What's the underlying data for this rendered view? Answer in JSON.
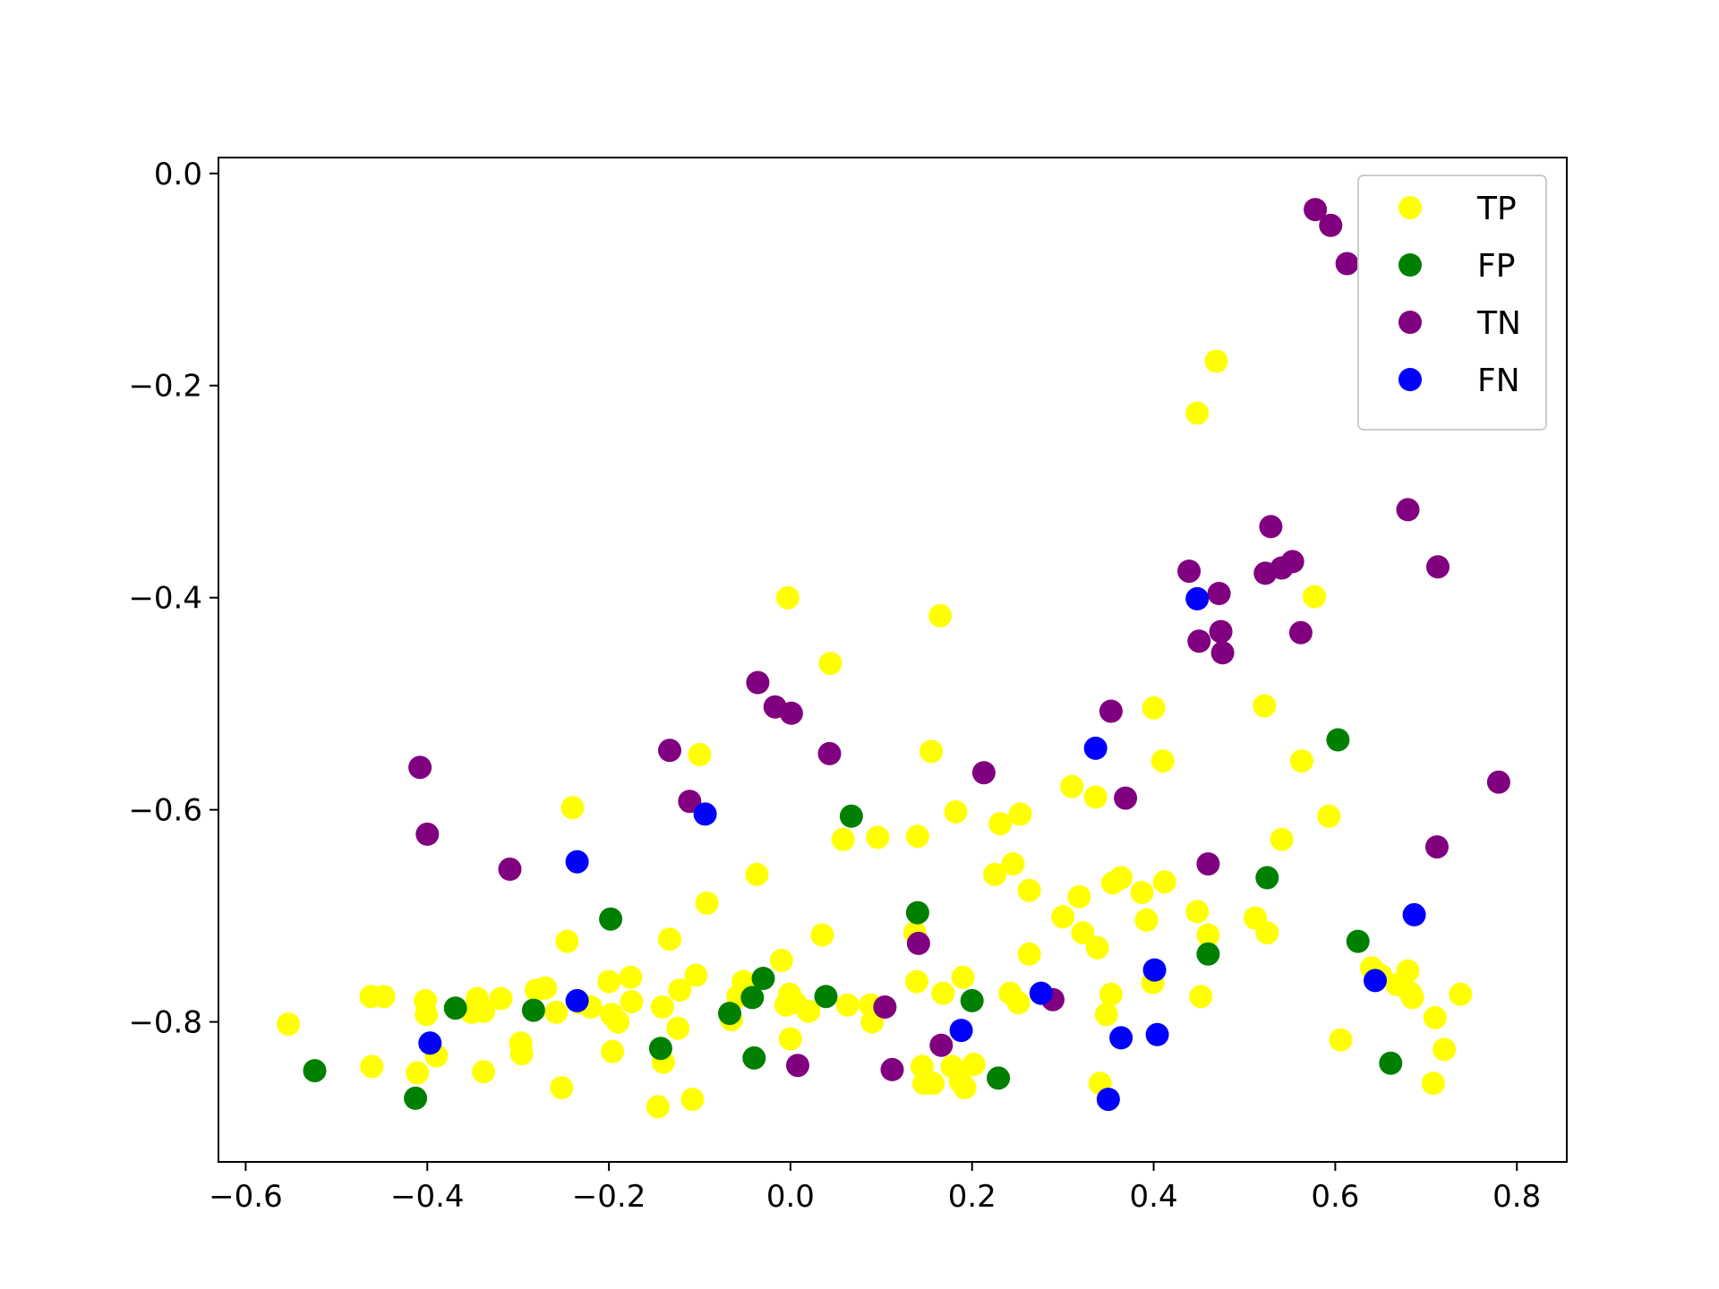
{
  "chart_data": {
    "type": "scatter",
    "title": "",
    "xlabel": "",
    "ylabel": "",
    "xlim": [
      -0.63,
      0.855
    ],
    "ylim": [
      -0.932,
      0.015
    ],
    "x_ticks": [
      -0.6,
      -0.4,
      -0.2,
      0.0,
      0.2,
      0.4,
      0.6,
      0.8
    ],
    "x_tick_labels": [
      "−0.6",
      "−0.4",
      "−0.2",
      "0.0",
      "0.2",
      "0.4",
      "0.6",
      "0.8"
    ],
    "y_ticks": [
      0.0,
      -0.2,
      -0.4,
      -0.6,
      -0.8
    ],
    "y_tick_labels": [
      "0.0",
      "−0.2",
      "−0.4",
      "−0.6",
      "−0.8"
    ],
    "grid": false,
    "legend_position": "top-right",
    "series": [
      {
        "name": "TP",
        "color": "#ffff00",
        "points": [
          [
            -0.553,
            -0.802
          ],
          [
            -0.462,
            -0.776
          ],
          [
            -0.448,
            -0.776
          ],
          [
            -0.461,
            -0.842
          ],
          [
            -0.411,
            -0.848
          ],
          [
            -0.402,
            -0.78
          ],
          [
            -0.401,
            -0.793
          ],
          [
            -0.39,
            -0.832
          ],
          [
            -0.351,
            -0.791
          ],
          [
            -0.345,
            -0.778
          ],
          [
            -0.338,
            -0.79
          ],
          [
            -0.338,
            -0.847
          ],
          [
            -0.319,
            -0.778
          ],
          [
            -0.297,
            -0.82
          ],
          [
            -0.296,
            -0.83
          ],
          [
            -0.28,
            -0.77
          ],
          [
            -0.27,
            -0.768
          ],
          [
            -0.258,
            -0.791
          ],
          [
            -0.252,
            -0.862
          ],
          [
            -0.246,
            -0.724
          ],
          [
            -0.24,
            -0.598
          ],
          [
            -0.232,
            -0.782
          ],
          [
            -0.22,
            -0.786
          ],
          [
            -0.2,
            -0.762
          ],
          [
            -0.197,
            -0.793
          ],
          [
            -0.196,
            -0.828
          ],
          [
            -0.19,
            -0.8
          ],
          [
            -0.176,
            -0.758
          ],
          [
            -0.175,
            -0.781
          ],
          [
            -0.146,
            -0.88
          ],
          [
            -0.141,
            -0.786
          ],
          [
            -0.14,
            -0.838
          ],
          [
            -0.133,
            -0.722
          ],
          [
            -0.124,
            -0.806
          ],
          [
            -0.122,
            -0.77
          ],
          [
            -0.108,
            -0.873
          ],
          [
            -0.104,
            -0.756
          ],
          [
            -0.1,
            -0.548
          ],
          [
            -0.092,
            -0.688
          ],
          [
            -0.065,
            -0.798
          ],
          [
            -0.058,
            -0.776
          ],
          [
            -0.052,
            -0.762
          ],
          [
            -0.037,
            -0.661
          ],
          [
            -0.01,
            -0.742
          ],
          [
            -0.005,
            -0.784
          ],
          [
            -0.003,
            -0.4
          ],
          [
            -0.001,
            -0.774
          ],
          [
            0.0,
            -0.816
          ],
          [
            0.005,
            -0.782
          ],
          [
            0.02,
            -0.79
          ],
          [
            0.035,
            -0.718
          ],
          [
            0.044,
            -0.462
          ],
          [
            0.058,
            -0.628
          ],
          [
            0.063,
            -0.784
          ],
          [
            0.096,
            -0.626
          ],
          [
            0.09,
            -0.8
          ],
          [
            0.088,
            -0.784
          ],
          [
            0.137,
            -0.716
          ],
          [
            0.139,
            -0.762
          ],
          [
            0.14,
            -0.625
          ],
          [
            0.145,
            -0.842
          ],
          [
            0.147,
            -0.858
          ],
          [
            0.155,
            -0.545
          ],
          [
            0.157,
            -0.858
          ],
          [
            0.165,
            -0.417
          ],
          [
            0.168,
            -0.773
          ],
          [
            0.178,
            -0.842
          ],
          [
            0.182,
            -0.602
          ],
          [
            0.187,
            -0.856
          ],
          [
            0.19,
            -0.758
          ],
          [
            0.192,
            -0.862
          ],
          [
            0.202,
            -0.84
          ],
          [
            0.225,
            -0.661
          ],
          [
            0.231,
            -0.613
          ],
          [
            0.242,
            -0.773
          ],
          [
            0.245,
            -0.651
          ],
          [
            0.251,
            -0.782
          ],
          [
            0.253,
            -0.604
          ],
          [
            0.263,
            -0.676
          ],
          [
            0.263,
            -0.736
          ],
          [
            0.3,
            -0.701
          ],
          [
            0.31,
            -0.578
          ],
          [
            0.318,
            -0.682
          ],
          [
            0.322,
            -0.716
          ],
          [
            0.336,
            -0.588
          ],
          [
            0.338,
            -0.73
          ],
          [
            0.341,
            -0.858
          ],
          [
            0.348,
            -0.793
          ],
          [
            0.353,
            -0.774
          ],
          [
            0.355,
            -0.669
          ],
          [
            0.364,
            -0.664
          ],
          [
            0.387,
            -0.678
          ],
          [
            0.392,
            -0.704
          ],
          [
            0.399,
            -0.763
          ],
          [
            0.4,
            -0.504
          ],
          [
            0.41,
            -0.554
          ],
          [
            0.412,
            -0.668
          ],
          [
            0.448,
            -0.226
          ],
          [
            0.448,
            -0.696
          ],
          [
            0.452,
            -0.776
          ],
          [
            0.46,
            -0.718
          ],
          [
            0.469,
            -0.177
          ],
          [
            0.512,
            -0.702
          ],
          [
            0.522,
            -0.502
          ],
          [
            0.525,
            -0.716
          ],
          [
            0.541,
            -0.628
          ],
          [
            0.563,
            -0.554
          ],
          [
            0.577,
            -0.399
          ],
          [
            0.593,
            -0.606
          ],
          [
            0.606,
            -0.817
          ],
          [
            0.64,
            -0.749
          ],
          [
            0.65,
            -0.756
          ],
          [
            0.668,
            -0.765
          ],
          [
            0.68,
            -0.752
          ],
          [
            0.683,
            -0.773
          ],
          [
            0.685,
            -0.777
          ],
          [
            0.708,
            -0.858
          ],
          [
            0.71,
            -0.796
          ],
          [
            0.72,
            -0.826
          ],
          [
            0.738,
            -0.774
          ]
        ]
      },
      {
        "name": "FP",
        "color": "#008000",
        "points": [
          [
            -0.524,
            -0.846
          ],
          [
            -0.413,
            -0.872
          ],
          [
            -0.369,
            -0.787
          ],
          [
            -0.283,
            -0.789
          ],
          [
            -0.198,
            -0.703
          ],
          [
            -0.143,
            -0.825
          ],
          [
            -0.067,
            -0.792
          ],
          [
            -0.042,
            -0.777
          ],
          [
            -0.04,
            -0.834
          ],
          [
            -0.03,
            -0.759
          ],
          [
            0.039,
            -0.776
          ],
          [
            0.067,
            -0.606
          ],
          [
            0.14,
            -0.697
          ],
          [
            0.2,
            -0.78
          ],
          [
            0.229,
            -0.853
          ],
          [
            0.46,
            -0.736
          ],
          [
            0.525,
            -0.664
          ],
          [
            0.603,
            -0.534
          ],
          [
            0.625,
            -0.724
          ],
          [
            0.661,
            -0.839
          ]
        ]
      },
      {
        "name": "TN",
        "color": "#800080",
        "points": [
          [
            -0.408,
            -0.56
          ],
          [
            -0.4,
            -0.623
          ],
          [
            -0.309,
            -0.656
          ],
          [
            -0.133,
            -0.544
          ],
          [
            -0.111,
            -0.592
          ],
          [
            -0.036,
            -0.48
          ],
          [
            -0.017,
            -0.503
          ],
          [
            0.001,
            -0.509
          ],
          [
            0.008,
            -0.841
          ],
          [
            0.043,
            -0.547
          ],
          [
            0.104,
            -0.786
          ],
          [
            0.112,
            -0.845
          ],
          [
            0.141,
            -0.726
          ],
          [
            0.166,
            -0.822
          ],
          [
            0.213,
            -0.565
          ],
          [
            0.289,
            -0.779
          ],
          [
            0.353,
            -0.507
          ],
          [
            0.369,
            -0.589
          ],
          [
            0.439,
            -0.375
          ],
          [
            0.45,
            -0.441
          ],
          [
            0.46,
            -0.651
          ],
          [
            0.472,
            -0.396
          ],
          [
            0.474,
            -0.432
          ],
          [
            0.476,
            -0.452
          ],
          [
            0.523,
            -0.377
          ],
          [
            0.529,
            -0.333
          ],
          [
            0.541,
            -0.372
          ],
          [
            0.553,
            -0.366
          ],
          [
            0.562,
            -0.433
          ],
          [
            0.578,
            -0.034
          ],
          [
            0.595,
            -0.049
          ],
          [
            0.613,
            -0.085
          ],
          [
            0.68,
            -0.317
          ],
          [
            0.712,
            -0.635
          ],
          [
            0.713,
            -0.371
          ],
          [
            0.78,
            -0.574
          ]
        ]
      },
      {
        "name": "FN",
        "color": "#0000ff",
        "points": [
          [
            -0.397,
            -0.82
          ],
          [
            -0.235,
            -0.649
          ],
          [
            -0.235,
            -0.78
          ],
          [
            -0.094,
            -0.604
          ],
          [
            0.188,
            -0.808
          ],
          [
            0.276,
            -0.773
          ],
          [
            0.336,
            -0.542
          ],
          [
            0.35,
            -0.873
          ],
          [
            0.364,
            -0.815
          ],
          [
            0.401,
            -0.751
          ],
          [
            0.404,
            -0.812
          ],
          [
            0.448,
            -0.401
          ],
          [
            0.644,
            -0.761
          ],
          [
            0.687,
            -0.699
          ]
        ]
      }
    ]
  }
}
